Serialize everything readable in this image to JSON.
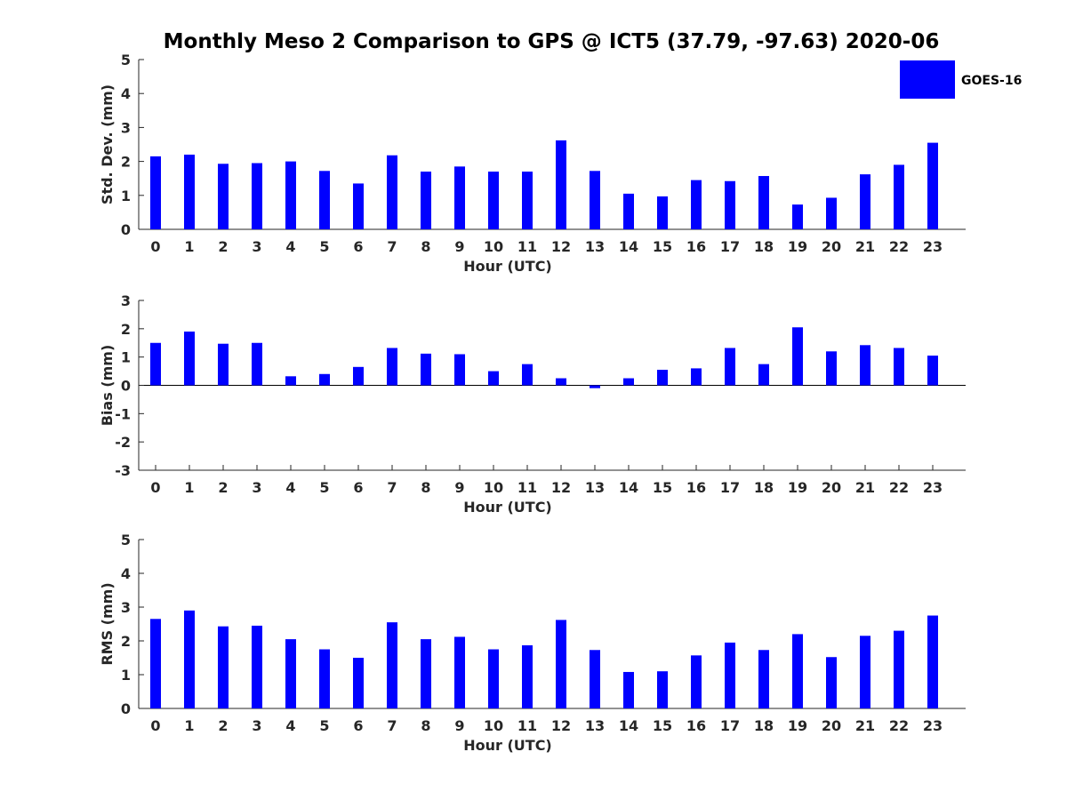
{
  "chart_data": {
    "type": "bar",
    "title": "Monthly Meso 2 Comparison to GPS @ ICT5 (37.79, -97.63) 2020-06",
    "legend": {
      "entries": [
        "GOES-16"
      ],
      "placement": "top-right"
    },
    "bar_color": "#0000ff",
    "categories": [
      "0",
      "1",
      "2",
      "3",
      "4",
      "5",
      "6",
      "7",
      "8",
      "9",
      "10",
      "11",
      "12",
      "13",
      "14",
      "15",
      "16",
      "17",
      "18",
      "19",
      "20",
      "21",
      "22",
      "23"
    ],
    "panels": [
      {
        "xlabel": "Hour (UTC)",
        "ylabel": "Std. Dev. (mm)",
        "ylim": [
          0,
          5
        ],
        "yticks": [
          "0",
          "1",
          "2",
          "3",
          "4",
          "5"
        ],
        "series": [
          {
            "name": "GOES-16",
            "values": [
              2.15,
              2.2,
              1.93,
              1.95,
              2.0,
              1.72,
              1.35,
              2.18,
              1.7,
              1.85,
              1.7,
              1.7,
              2.62,
              1.72,
              1.05,
              0.97,
              1.45,
              1.42,
              1.57,
              0.73,
              0.93,
              1.62,
              1.9,
              2.55
            ]
          }
        ]
      },
      {
        "xlabel": "Hour (UTC)",
        "ylabel": "Bias (mm)",
        "ylim": [
          -3,
          3
        ],
        "yticks": [
          "-3",
          "-2",
          "-1",
          "0",
          "1",
          "2",
          "3"
        ],
        "series": [
          {
            "name": "GOES-16",
            "values": [
              1.5,
              1.9,
              1.47,
              1.5,
              0.32,
              0.4,
              0.65,
              1.32,
              1.12,
              1.1,
              0.5,
              0.75,
              0.25,
              -0.1,
              0.25,
              0.55,
              0.6,
              1.32,
              0.75,
              2.05,
              1.2,
              1.42,
              1.32,
              1.05
            ]
          }
        ]
      },
      {
        "xlabel": "Hour (UTC)",
        "ylabel": "RMS (mm)",
        "ylim": [
          0,
          5
        ],
        "yticks": [
          "0",
          "1",
          "2",
          "3",
          "4",
          "5"
        ],
        "series": [
          {
            "name": "GOES-16",
            "values": [
              2.65,
              2.9,
              2.43,
              2.45,
              2.05,
              1.75,
              1.5,
              2.55,
              2.05,
              2.12,
              1.75,
              1.87,
              2.62,
              1.73,
              1.08,
              1.1,
              1.57,
              1.95,
              1.73,
              2.2,
              1.52,
              2.15,
              2.3,
              2.75
            ]
          }
        ]
      }
    ]
  }
}
